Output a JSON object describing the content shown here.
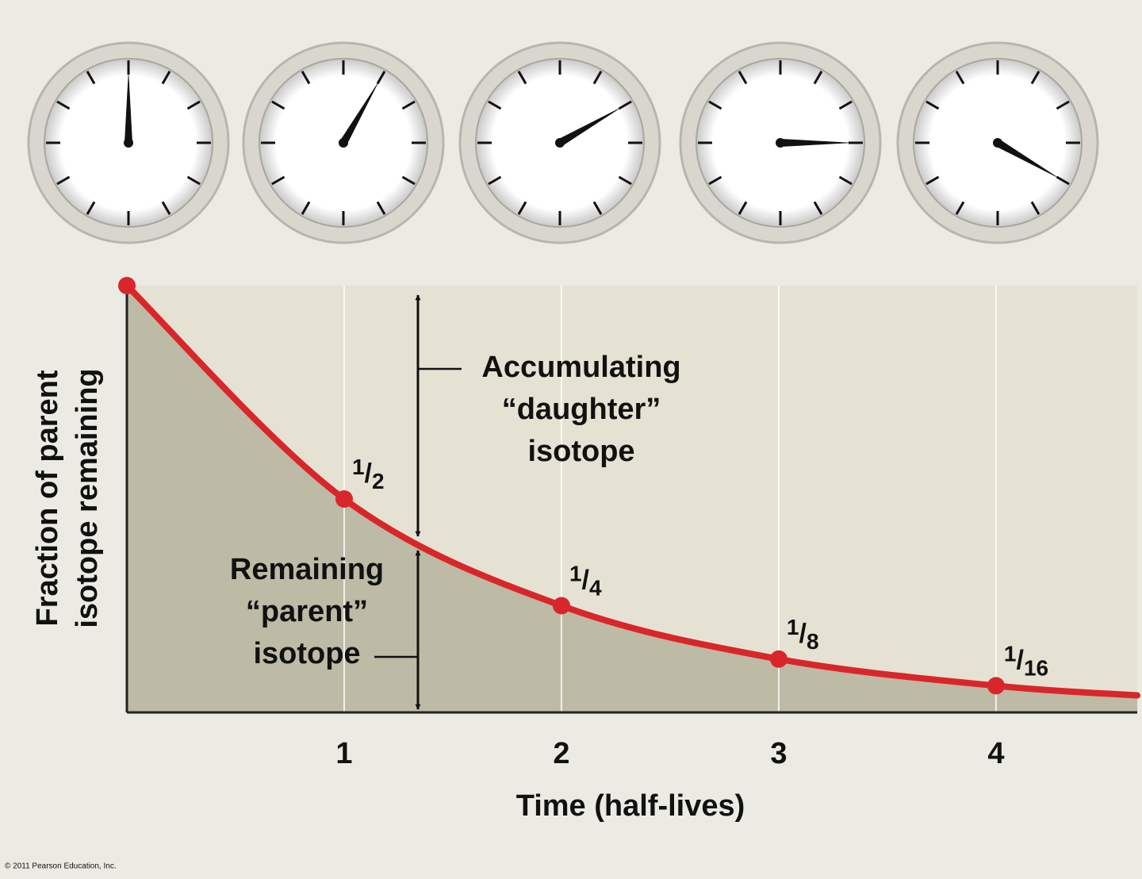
{
  "chart_data": {
    "type": "line",
    "x": [
      0,
      1,
      2,
      3,
      4,
      4.65
    ],
    "values": [
      1,
      0.5,
      0.25,
      0.125,
      0.0625,
      0.04
    ],
    "value_labels": [
      null,
      "1/2",
      "1/4",
      "1/8",
      "1/16",
      null
    ],
    "color": "#d9262a",
    "fill_color": "#bdbaa6",
    "xlim": [
      0,
      4.65
    ],
    "xticks": [
      1,
      2,
      3,
      4
    ],
    "ylim": [
      0,
      1
    ],
    "grid": true,
    "xlabel": "Time (half-lives)",
    "ylabel": [
      "Fraction of parent",
      "isotope remaining"
    ],
    "daughter_label": [
      "Accumulating",
      "“daughter”",
      "isotope"
    ],
    "parent_label": [
      "Remaining",
      "“parent”",
      "isotope"
    ]
  },
  "footer": "© 2011 Pearson Education, Inc."
}
